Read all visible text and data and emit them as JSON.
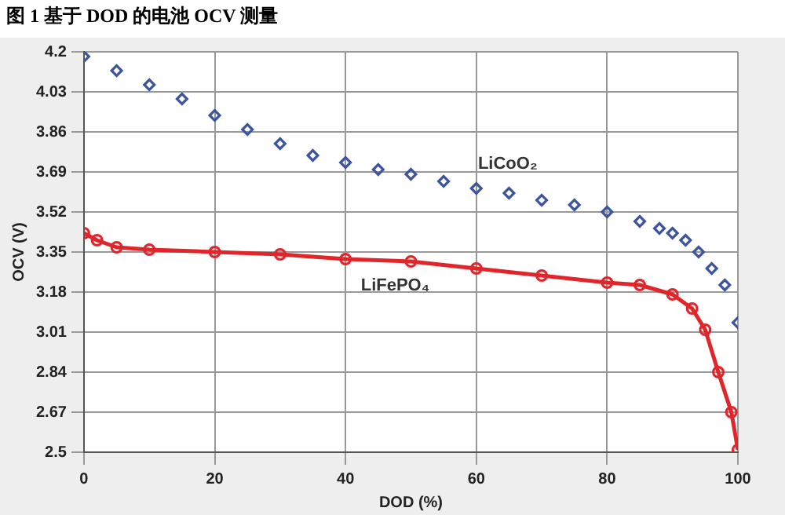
{
  "chart_data": {
    "type": "line",
    "title": "图 1 基于 DOD 的电池 OCV 测量",
    "xlabel": "DOD (%)",
    "ylabel": "OCV (V)",
    "xlim": [
      0,
      100
    ],
    "xticks": [
      0,
      20,
      40,
      60,
      80,
      100
    ],
    "ylim": [
      2.5,
      4.2
    ],
    "yticks": [
      2.5,
      2.67,
      2.84,
      3.01,
      3.18,
      3.35,
      3.52,
      3.69,
      3.86,
      4.03,
      4.2
    ],
    "grid": true,
    "series": [
      {
        "name": "LiCoO₂",
        "type": "scatter",
        "marker": "diamond",
        "color": "#3d55a0",
        "x": [
          0,
          5,
          10,
          15,
          20,
          25,
          30,
          35,
          40,
          45,
          50,
          55,
          60,
          65,
          70,
          75,
          80,
          85,
          88,
          90,
          92,
          94,
          96,
          98,
          100
        ],
        "values": [
          4.18,
          4.12,
          4.06,
          4.0,
          3.93,
          3.87,
          3.81,
          3.76,
          3.73,
          3.7,
          3.68,
          3.65,
          3.62,
          3.6,
          3.57,
          3.55,
          3.52,
          3.48,
          3.45,
          3.43,
          3.4,
          3.35,
          3.28,
          3.21,
          3.05
        ]
      },
      {
        "name": "LiFePO₄",
        "type": "line",
        "marker": "circle",
        "line_style": "solid",
        "color": "#e0262b",
        "x": [
          0,
          2,
          5,
          10,
          20,
          30,
          40,
          50,
          60,
          70,
          80,
          85,
          90,
          93,
          95,
          97,
          99,
          100
        ],
        "values": [
          3.43,
          3.4,
          3.37,
          3.36,
          3.35,
          3.34,
          3.32,
          3.31,
          3.28,
          3.25,
          3.22,
          3.21,
          3.17,
          3.11,
          3.02,
          2.84,
          2.67,
          2.51
        ]
      }
    ]
  }
}
